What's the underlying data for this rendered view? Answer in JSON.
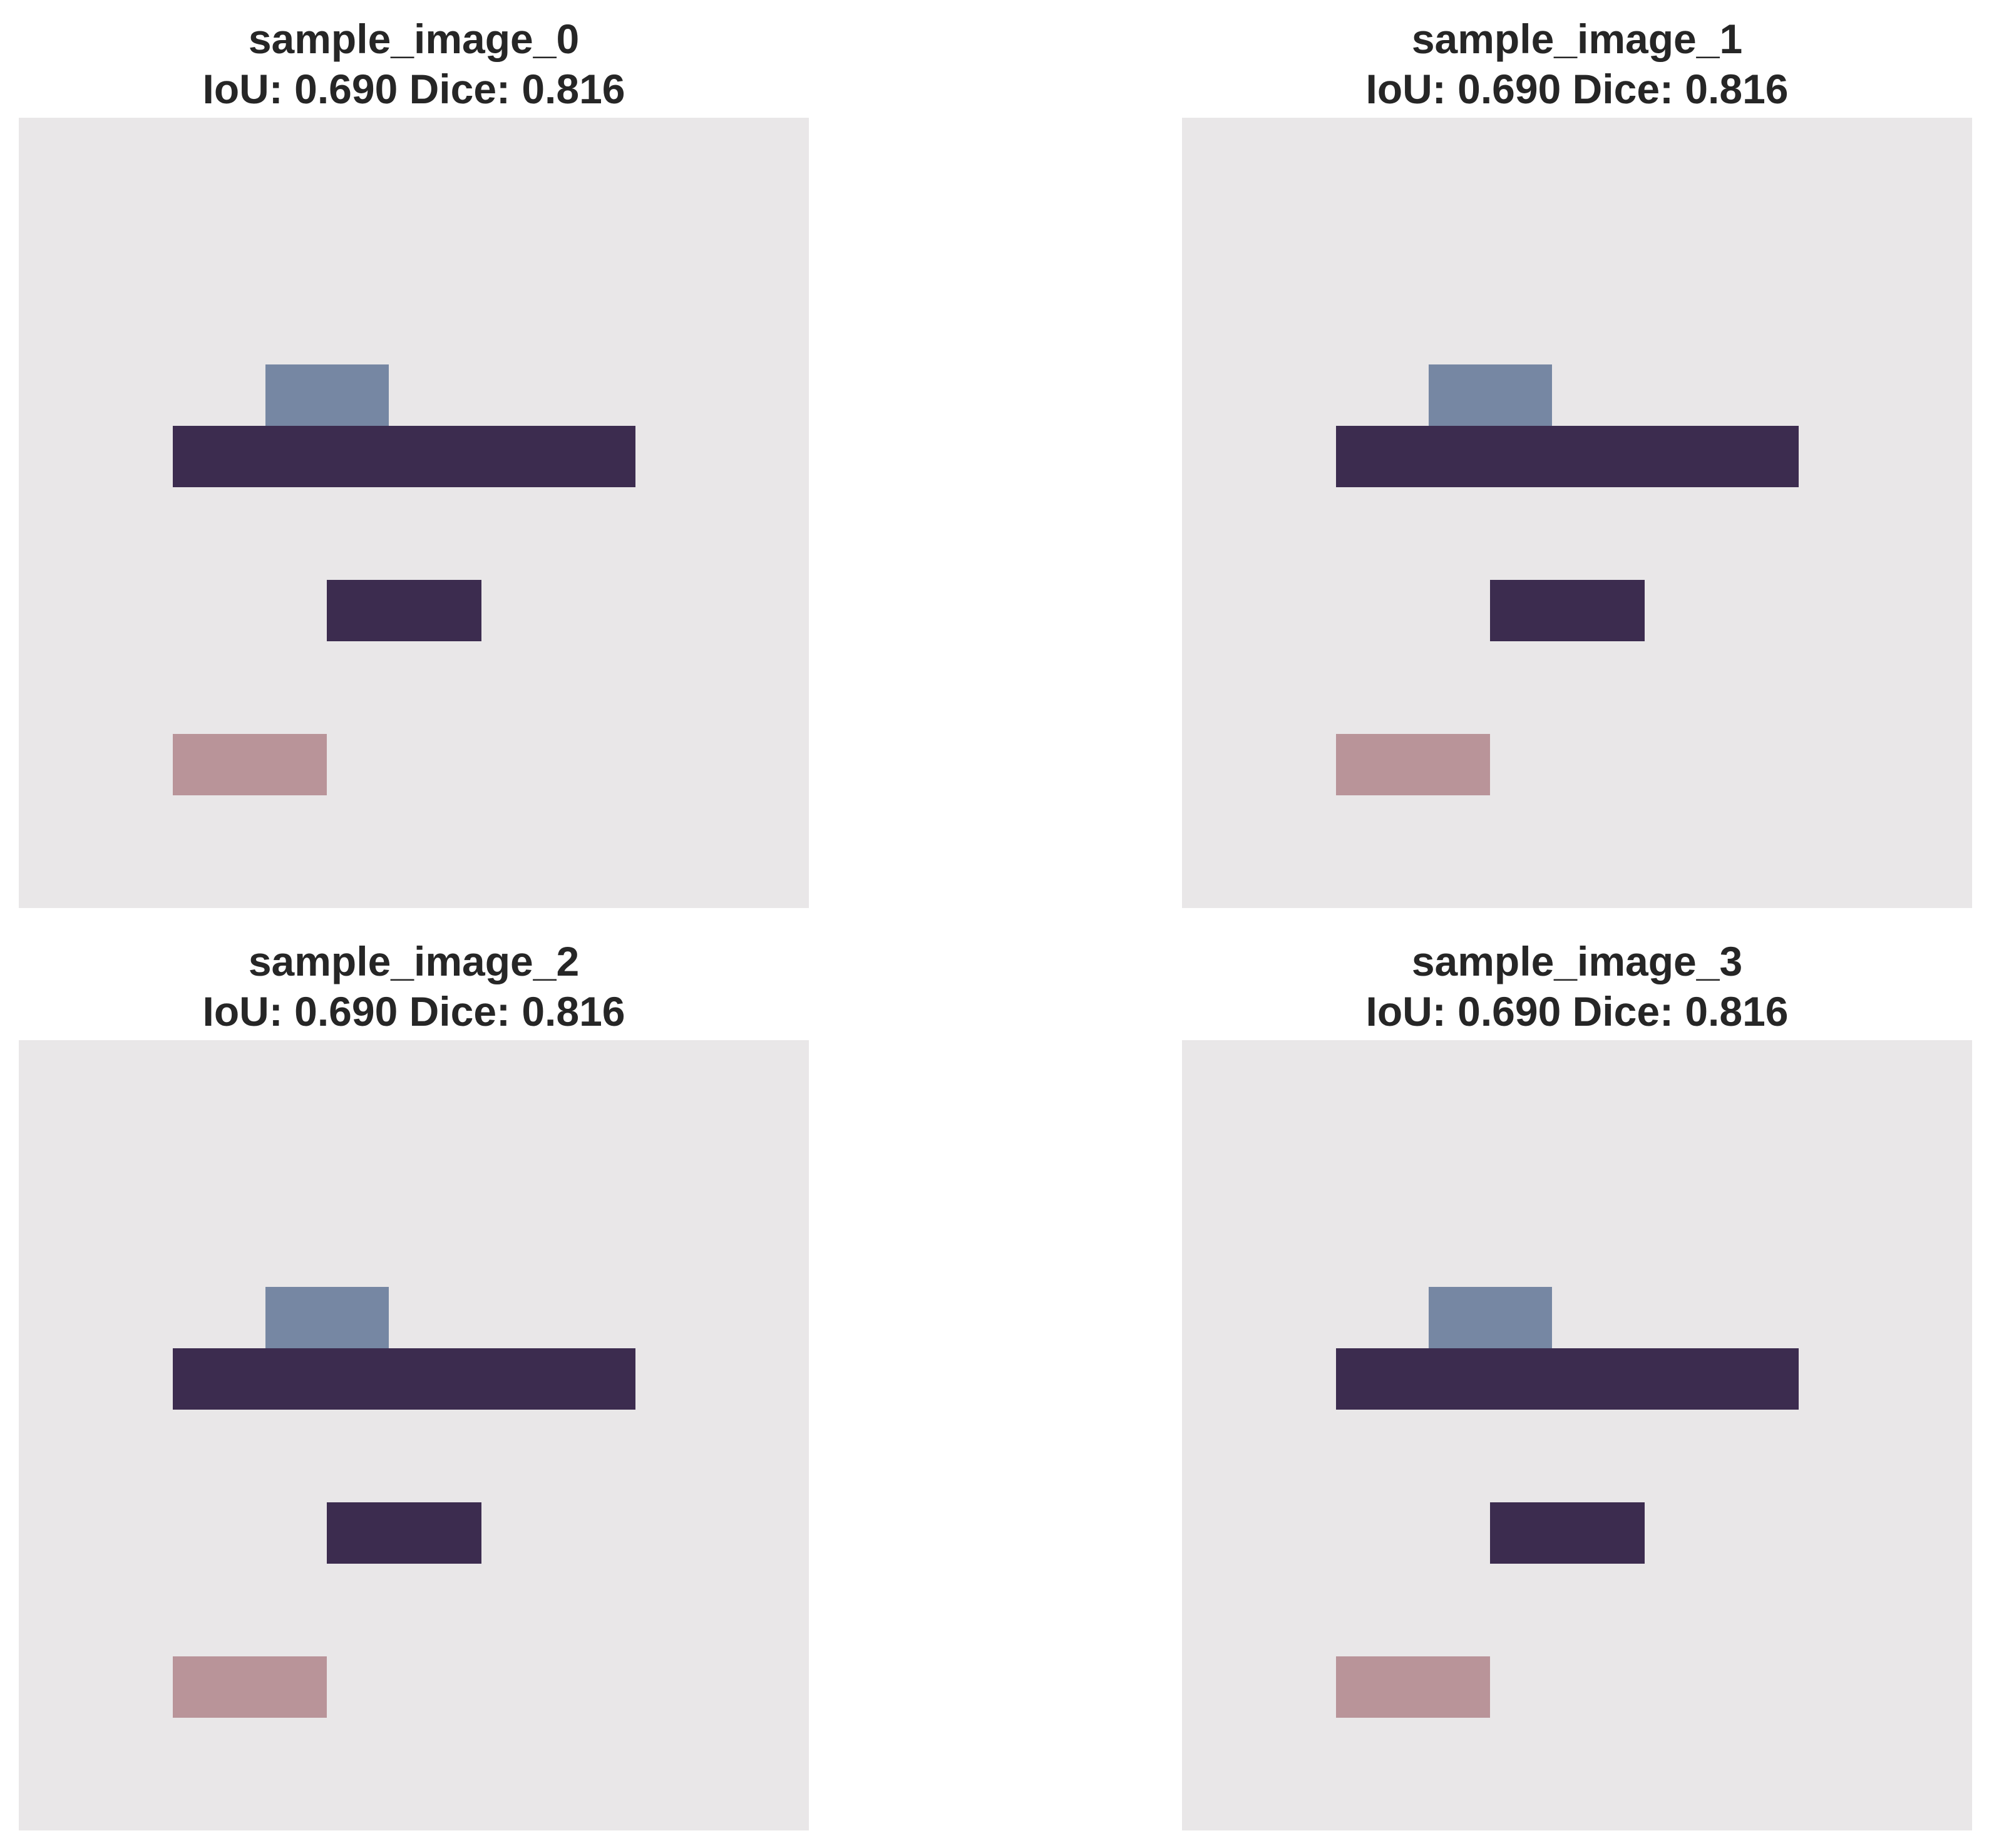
{
  "colors": {
    "background": "#e9e7e8",
    "light_blue": "#7687a3",
    "dark_purple": "#3c2c4f",
    "pink": "#b99499"
  },
  "panels": [
    {
      "name": "sample_image_0",
      "metrics": "IoU: 0.690 Dice: 0.816"
    },
    {
      "name": "sample_image_1",
      "metrics": "IoU: 0.690 Dice: 0.816"
    },
    {
      "name": "sample_image_2",
      "metrics": "IoU: 0.690 Dice: 0.816"
    },
    {
      "name": "sample_image_3",
      "metrics": "IoU: 0.690 Dice: 0.816"
    }
  ]
}
